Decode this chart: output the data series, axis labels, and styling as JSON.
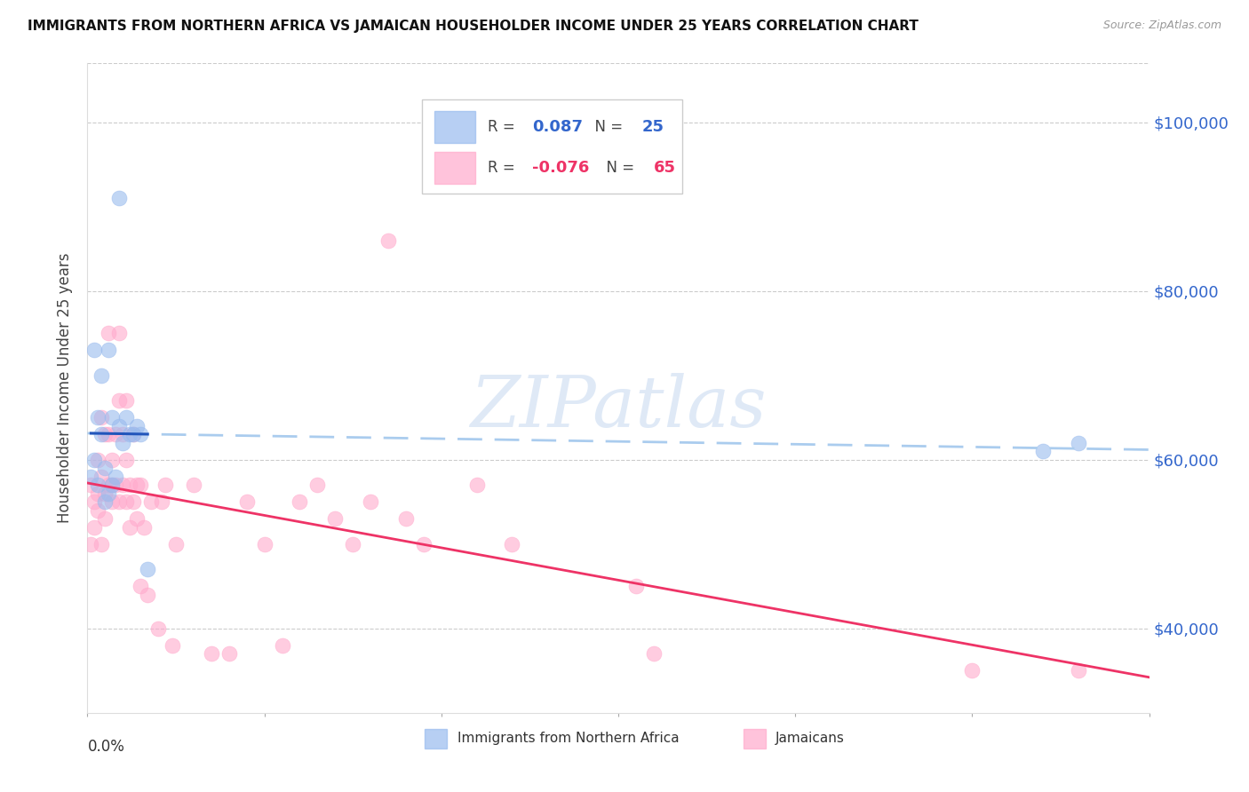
{
  "title": "IMMIGRANTS FROM NORTHERN AFRICA VS JAMAICAN HOUSEHOLDER INCOME UNDER 25 YEARS CORRELATION CHART",
  "source": "Source: ZipAtlas.com",
  "ylabel": "Householder Income Under 25 years",
  "xlim": [
    0.0,
    0.3
  ],
  "ylim": [
    30000,
    107000
  ],
  "yticks": [
    40000,
    60000,
    80000,
    100000
  ],
  "ytick_labels": [
    "$40,000",
    "$60,000",
    "$80,000",
    "$100,000"
  ],
  "background_color": "#ffffff",
  "grid_color": "#cccccc",
  "watermark": "ZIPatlas",
  "blue_scatter": [
    [
      0.001,
      58000
    ],
    [
      0.002,
      60000
    ],
    [
      0.002,
      73000
    ],
    [
      0.003,
      57000
    ],
    [
      0.003,
      65000
    ],
    [
      0.004,
      70000
    ],
    [
      0.004,
      63000
    ],
    [
      0.005,
      55000
    ],
    [
      0.005,
      59000
    ],
    [
      0.006,
      56000
    ],
    [
      0.006,
      73000
    ],
    [
      0.007,
      57000
    ],
    [
      0.007,
      65000
    ],
    [
      0.008,
      58000
    ],
    [
      0.009,
      64000
    ],
    [
      0.009,
      91000
    ],
    [
      0.01,
      62000
    ],
    [
      0.011,
      65000
    ],
    [
      0.012,
      63000
    ],
    [
      0.013,
      63000
    ],
    [
      0.014,
      64000
    ],
    [
      0.015,
      63000
    ],
    [
      0.017,
      47000
    ],
    [
      0.27,
      61000
    ],
    [
      0.28,
      62000
    ]
  ],
  "pink_scatter": [
    [
      0.001,
      57000
    ],
    [
      0.001,
      50000
    ],
    [
      0.002,
      52000
    ],
    [
      0.002,
      55000
    ],
    [
      0.003,
      54000
    ],
    [
      0.003,
      60000
    ],
    [
      0.003,
      56000
    ],
    [
      0.004,
      50000
    ],
    [
      0.004,
      58000
    ],
    [
      0.004,
      65000
    ],
    [
      0.005,
      53000
    ],
    [
      0.005,
      56000
    ],
    [
      0.005,
      63000
    ],
    [
      0.006,
      57000
    ],
    [
      0.006,
      63000
    ],
    [
      0.006,
      75000
    ],
    [
      0.007,
      55000
    ],
    [
      0.007,
      57000
    ],
    [
      0.007,
      60000
    ],
    [
      0.008,
      57000
    ],
    [
      0.008,
      63000
    ],
    [
      0.009,
      55000
    ],
    [
      0.009,
      67000
    ],
    [
      0.009,
      75000
    ],
    [
      0.01,
      57000
    ],
    [
      0.01,
      63000
    ],
    [
      0.011,
      55000
    ],
    [
      0.011,
      60000
    ],
    [
      0.011,
      67000
    ],
    [
      0.012,
      52000
    ],
    [
      0.012,
      57000
    ],
    [
      0.013,
      55000
    ],
    [
      0.013,
      63000
    ],
    [
      0.014,
      53000
    ],
    [
      0.014,
      57000
    ],
    [
      0.015,
      45000
    ],
    [
      0.015,
      57000
    ],
    [
      0.016,
      52000
    ],
    [
      0.017,
      44000
    ],
    [
      0.018,
      55000
    ],
    [
      0.02,
      40000
    ],
    [
      0.021,
      55000
    ],
    [
      0.022,
      57000
    ],
    [
      0.024,
      38000
    ],
    [
      0.025,
      50000
    ],
    [
      0.03,
      57000
    ],
    [
      0.035,
      37000
    ],
    [
      0.04,
      37000
    ],
    [
      0.045,
      55000
    ],
    [
      0.05,
      50000
    ],
    [
      0.055,
      38000
    ],
    [
      0.06,
      55000
    ],
    [
      0.065,
      57000
    ],
    [
      0.07,
      53000
    ],
    [
      0.075,
      50000
    ],
    [
      0.08,
      55000
    ],
    [
      0.085,
      86000
    ],
    [
      0.09,
      53000
    ],
    [
      0.095,
      50000
    ],
    [
      0.11,
      57000
    ],
    [
      0.12,
      50000
    ],
    [
      0.155,
      45000
    ],
    [
      0.16,
      37000
    ],
    [
      0.25,
      35000
    ],
    [
      0.28,
      35000
    ]
  ],
  "blue_color": "#99bbee",
  "pink_color": "#ffaacc",
  "blue_line_color": "#2255bb",
  "pink_line_color": "#ee3366",
  "trend_line_dash_color": "#aaccee",
  "legend_r_blue": "0.087",
  "legend_n_blue": "25",
  "legend_r_pink": "-0.076",
  "legend_n_pink": "65",
  "legend_label_blue": "Immigrants from Northern Africa",
  "legend_label_pink": "Jamaicans"
}
